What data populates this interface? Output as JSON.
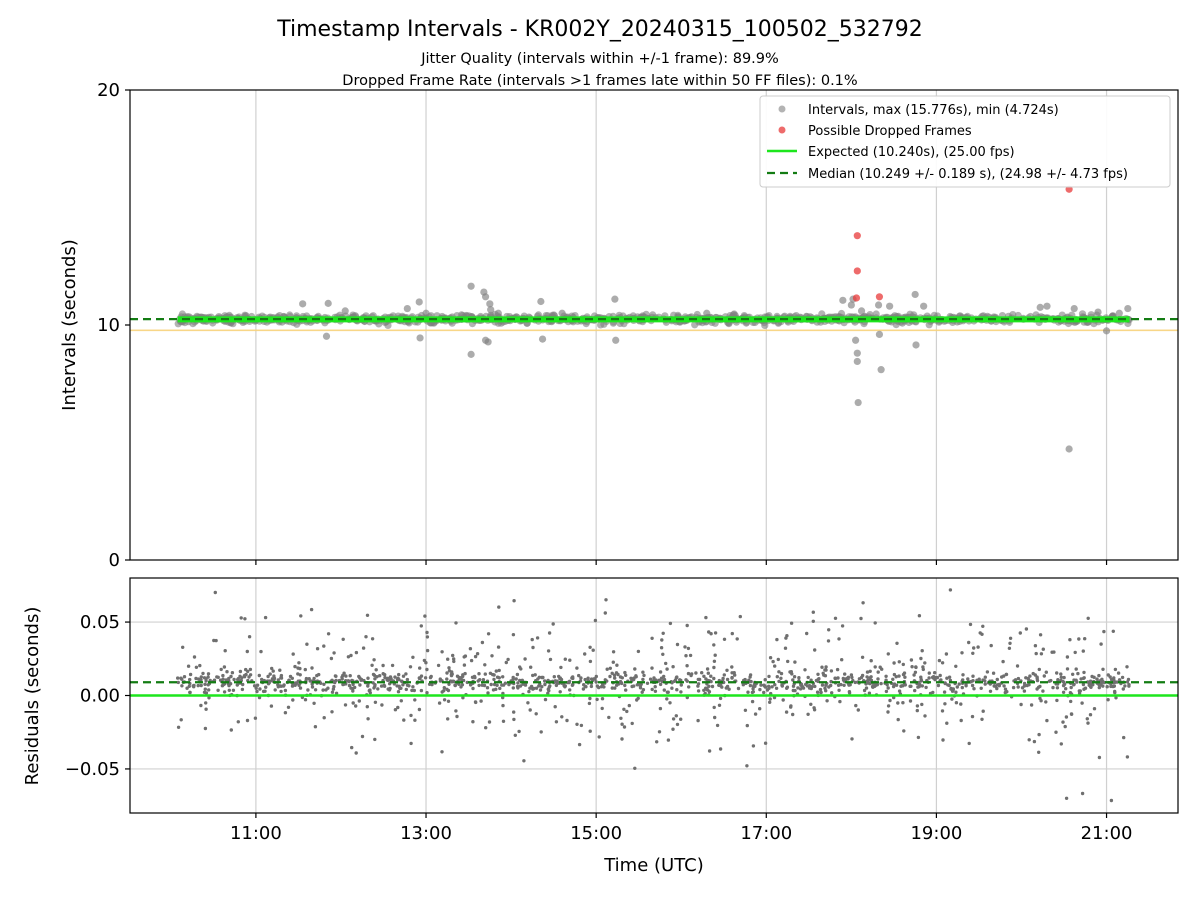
{
  "title": "Timestamp Intervals - KR002Y_20240315_100502_532792",
  "subtitles": [
    "Jitter Quality (intervals within +/-1 frame): 89.9%",
    "Dropped Frame Rate (intervals >1 frames late within 50 FF files): 0.1%"
  ],
  "colors": {
    "intervals": "#808080",
    "dropped": "#e8393a",
    "expected": "#1de61d",
    "median": "#137c13",
    "band": "#f7d27a",
    "grid": "#d0d0d0"
  },
  "chart_data": [
    {
      "type": "scatter",
      "panel": "intervals",
      "ylabel": "Intervals (seconds)",
      "xlabel": "",
      "x_range_hours": [
        9.52,
        21.84
      ],
      "ylim": [
        0,
        20
      ],
      "y_ticks": [
        0,
        10,
        20
      ],
      "x_ticks": [
        11,
        13,
        15,
        17,
        19,
        21
      ],
      "x_tick_labels": [
        "11:00",
        "13:00",
        "15:00",
        "17:00",
        "19:00",
        "21:00"
      ],
      "grid": "vertical",
      "legend_position": "top-right",
      "legend": [
        "Intervals, max (15.776s), min (4.724s)",
        "Possible Dropped Frames",
        "Expected (10.240s), (25.00 fps)",
        "Median (10.249 +/- 0.189 s), (24.98 +/- 4.73 fps)"
      ],
      "expected": 10.24,
      "median": 10.249,
      "band": [
        9.85,
        10.29
      ],
      "time_span_hours": [
        10.08,
        21.27
      ],
      "outliers": [
        {
          "x": 11.55,
          "y": 10.9
        },
        {
          "x": 11.83,
          "y": 9.52
        },
        {
          "x": 11.85,
          "y": 10.92
        },
        {
          "x": 12.05,
          "y": 10.6
        },
        {
          "x": 12.78,
          "y": 10.7
        },
        {
          "x": 12.92,
          "y": 10.98
        },
        {
          "x": 12.93,
          "y": 9.45
        },
        {
          "x": 13.0,
          "y": 10.5
        },
        {
          "x": 13.53,
          "y": 11.65
        },
        {
          "x": 13.53,
          "y": 8.75
        },
        {
          "x": 13.68,
          "y": 11.4
        },
        {
          "x": 13.7,
          "y": 11.2
        },
        {
          "x": 13.7,
          "y": 9.35
        },
        {
          "x": 13.73,
          "y": 9.28
        },
        {
          "x": 13.75,
          "y": 10.9
        },
        {
          "x": 13.76,
          "y": 10.65
        },
        {
          "x": 13.85,
          "y": 10.5
        },
        {
          "x": 14.05,
          "y": 10.3
        },
        {
          "x": 14.22,
          "y": 10.3
        },
        {
          "x": 14.35,
          "y": 11.0
        },
        {
          "x": 14.37,
          "y": 9.4
        },
        {
          "x": 14.6,
          "y": 10.5
        },
        {
          "x": 15.22,
          "y": 11.1
        },
        {
          "x": 15.23,
          "y": 9.35
        },
        {
          "x": 16.3,
          "y": 10.5
        },
        {
          "x": 17.9,
          "y": 11.05
        },
        {
          "x": 18.0,
          "y": 10.85
        },
        {
          "x": 18.02,
          "y": 11.1
        },
        {
          "x": 18.05,
          "y": 9.35
        },
        {
          "x": 18.07,
          "y": 8.8
        },
        {
          "x": 18.07,
          "y": 8.45
        },
        {
          "x": 18.08,
          "y": 6.7
        },
        {
          "x": 18.12,
          "y": 10.6
        },
        {
          "x": 18.32,
          "y": 10.85
        },
        {
          "x": 18.33,
          "y": 9.6
        },
        {
          "x": 18.35,
          "y": 8.1
        },
        {
          "x": 18.45,
          "y": 10.8
        },
        {
          "x": 18.75,
          "y": 11.3
        },
        {
          "x": 18.76,
          "y": 9.15
        },
        {
          "x": 18.85,
          "y": 10.8
        },
        {
          "x": 20.22,
          "y": 10.75
        },
        {
          "x": 20.3,
          "y": 10.8
        },
        {
          "x": 20.56,
          "y": 4.724
        },
        {
          "x": 20.62,
          "y": 10.7
        },
        {
          "x": 20.9,
          "y": 10.55
        },
        {
          "x": 21.0,
          "y": 9.75
        },
        {
          "x": 21.15,
          "y": 10.5
        },
        {
          "x": 21.25,
          "y": 10.7
        }
      ],
      "dropped_points": [
        {
          "x": 18.07,
          "y": 13.8
        },
        {
          "x": 18.07,
          "y": 12.3
        },
        {
          "x": 18.06,
          "y": 11.15
        },
        {
          "x": 18.33,
          "y": 11.2
        },
        {
          "x": 20.56,
          "y": 15.776
        }
      ]
    },
    {
      "type": "scatter",
      "panel": "residuals",
      "ylabel": "Residuals (seconds)",
      "xlabel": "Time (UTC)",
      "x_range_hours": [
        9.52,
        21.84
      ],
      "ylim": [
        -0.08,
        0.08
      ],
      "y_ticks": [
        0.05,
        0.0,
        -0.05
      ],
      "y_tick_labels": [
        "0.05",
        "0.00",
        "−0.05"
      ],
      "x_ticks": [
        11,
        13,
        15,
        17,
        19,
        21
      ],
      "x_tick_labels": [
        "11:00",
        "13:00",
        "15:00",
        "17:00",
        "19:00",
        "21:00"
      ],
      "grid": "both",
      "expected_residual": 0.0,
      "median_residual": 0.009,
      "point_count": 1500,
      "time_span_hours": [
        10.08,
        21.27
      ]
    }
  ]
}
